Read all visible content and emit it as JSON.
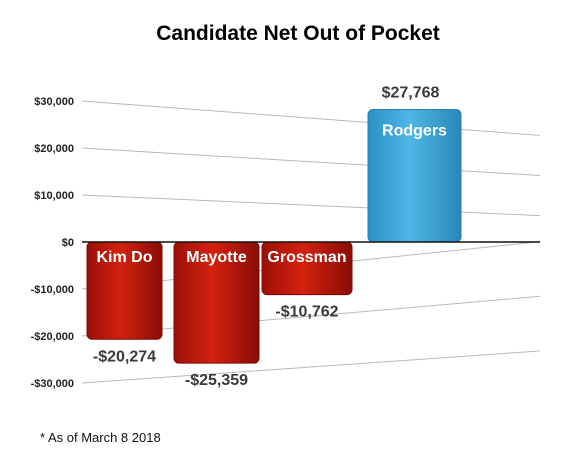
{
  "chart_data": {
    "type": "bar",
    "title": "Candidate Net Out of Pocket",
    "categories": [
      "Kim Do",
      "Mayotte",
      "Grossman",
      "Rodgers"
    ],
    "values": [
      -20274,
      -25359,
      -10762,
      27768
    ],
    "value_labels": [
      "-$20,274",
      "-$25,359",
      "-$10,762",
      "$27,768"
    ],
    "colors": [
      "#c0180c",
      "#c0180c",
      "#c0180c",
      "#3aa6da"
    ],
    "yticks": [
      30000,
      20000,
      10000,
      0,
      -10000,
      -20000,
      -30000
    ],
    "ytick_labels": [
      "$30,000",
      "$20,000",
      "$10,000",
      "$0",
      "-$10,000",
      "-$20,000",
      "-$30,000"
    ],
    "ylim": [
      -30000,
      30000
    ],
    "grid": true,
    "note": "* As of March 8 2018"
  }
}
